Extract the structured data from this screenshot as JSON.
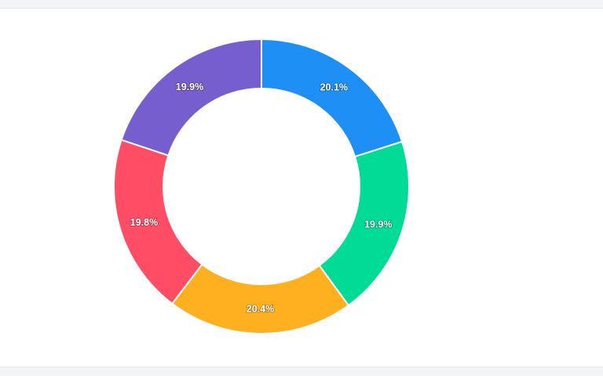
{
  "chart_data": {
    "type": "pie",
    "variant": "donut",
    "title": "",
    "labels": [
      "20.1%",
      "19.9%",
      "20.4%",
      "19.8%",
      "19.9%"
    ],
    "values": [
      20.1,
      19.9,
      20.4,
      19.8,
      19.9
    ],
    "colors": [
      "#1e8ff5",
      "#00dc96",
      "#ffb01f",
      "#ff4d66",
      "#775ecf"
    ],
    "legend": "none",
    "start_angle_deg": 0,
    "direction": "clockwise"
  }
}
